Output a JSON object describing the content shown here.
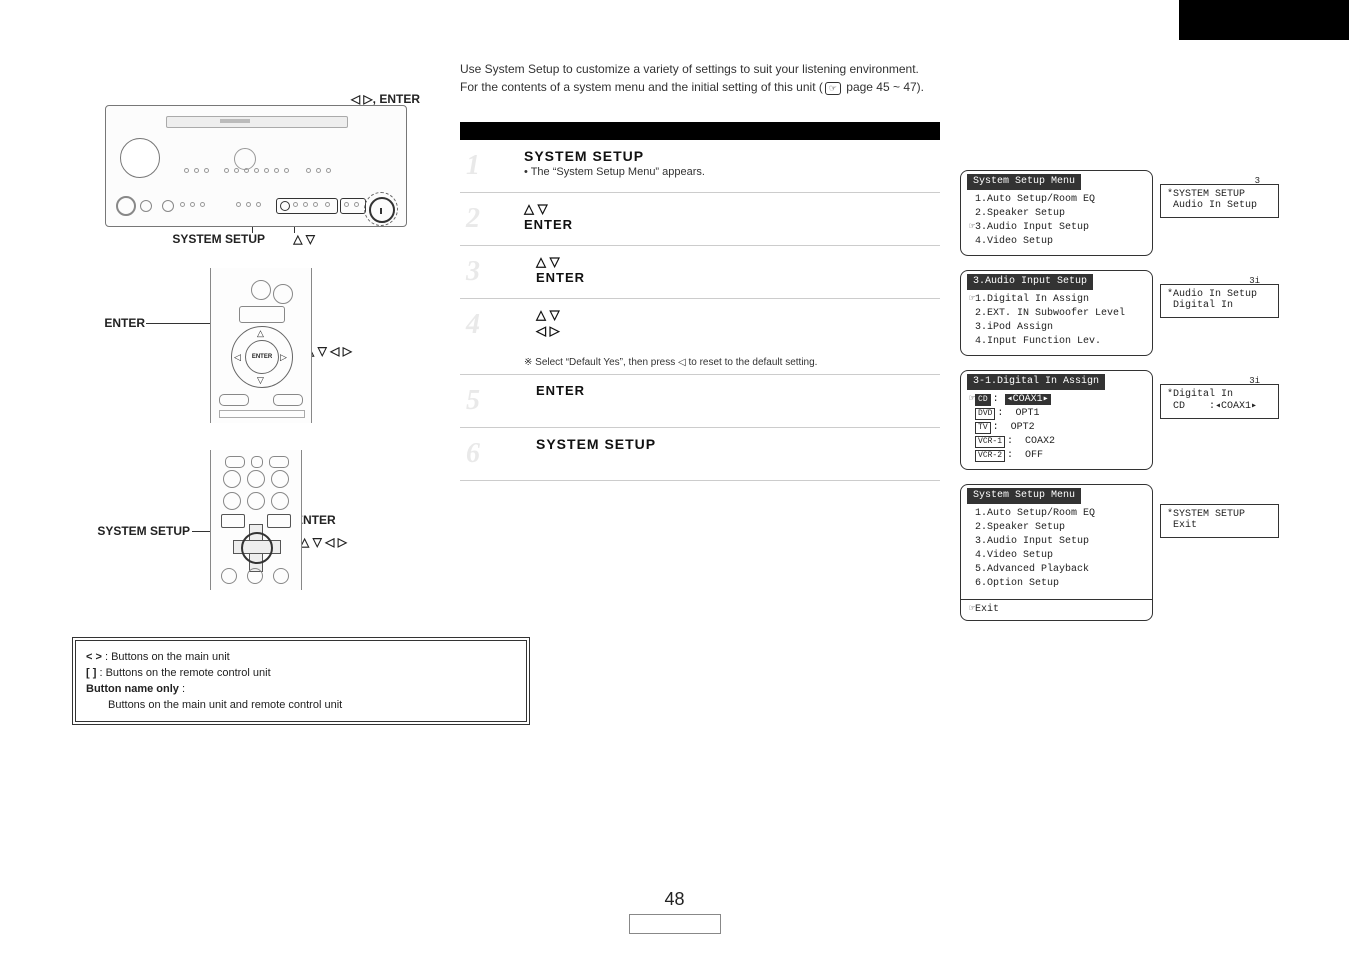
{
  "intro": {
    "line1": "Use System Setup to customize a variety of settings to suit your listening environment.",
    "line2_a": "For the contents of a system menu and the initial setting of this unit (",
    "line2_b": " page 45 ~ 47).",
    "ref_icon": "☞"
  },
  "left_labels": {
    "arrows_enter": "◁ ▷, ENTER",
    "system_setup": "SYSTEM SETUP",
    "updn": "△ ▽",
    "enter": "ENTER",
    "all_arrows": "△ ▽ ◁ ▷"
  },
  "steps": {
    "s1": {
      "num": "1",
      "title": "SYSTEM SETUP",
      "sub": "• The “System Setup Menu” appears."
    },
    "s2": {
      "num": "2",
      "arrows": "△ ▽",
      "enter": "ENTER"
    },
    "s3": {
      "num": "3",
      "arrows": "△ ▽",
      "enter": "ENTER"
    },
    "s4": {
      "num": "4",
      "row1": "△ ▽",
      "row2": "◁ ▷"
    },
    "note": "※ Select “Default Yes”, then press ◁ to reset to the default setting.",
    "s5": {
      "num": "5",
      "enter": "ENTER"
    },
    "s6": {
      "num": "6",
      "title": "SYSTEM SETUP"
    }
  },
  "osd": {
    "menu1": {
      "title": "System Setup Menu",
      "items": [
        "1.Auto Setup/Room EQ",
        "2.Speaker Setup",
        "3.Audio Input Setup",
        "4.Video Setup"
      ],
      "cursor_row": 2,
      "num": "3"
    },
    "fl1": {
      "l1": "*SYSTEM SETUP",
      "l2": " Audio In Setup"
    },
    "menu2": {
      "title": "3.Audio Input Setup",
      "items": [
        "1.Digital In Assign",
        "2.EXT. IN Subwoofer Level",
        "3.iPod Assign",
        "4.Input Function Lev."
      ],
      "cursor_row": 0,
      "num": "3i"
    },
    "fl2": {
      "l1": "*Audio In Setup",
      "l2": " Digital In"
    },
    "menu3": {
      "title": "3-1.Digital In Assign",
      "rows": [
        {
          "tag": "CD",
          "val": "COAX1",
          "sel": true
        },
        {
          "tag": "DVD",
          "val": "OPT1"
        },
        {
          "tag": "TV",
          "val": "OPT2"
        },
        {
          "tag": "VCR-1",
          "val": "COAX2"
        },
        {
          "tag": "VCR-2",
          "val": "OFF"
        }
      ],
      "num": "3i"
    },
    "fl3": {
      "l1": "*Digital In",
      "l2": " CD    :◂COAX1▸"
    },
    "menu4": {
      "title": "System Setup Menu",
      "items": [
        "1.Auto Setup/Room EQ",
        "2.Speaker Setup",
        "3.Audio Input Setup",
        "4.Video Setup",
        "5.Advanced Playback",
        "6.Option Setup"
      ],
      "exit": "Exit"
    },
    "fl4": {
      "l1": "*SYSTEM SETUP",
      "l2": " Exit"
    }
  },
  "remote1_center_label": "ENTER",
  "legend": {
    "angle": "<   >",
    "angle_desc": " : Buttons on the main unit",
    "bracket": "[    ]",
    "bracket_desc": " : Buttons on the remote control unit",
    "name_only_label": "Button name only",
    "name_only_desc": "Buttons on the main unit and remote control unit"
  },
  "page_number": "48"
}
